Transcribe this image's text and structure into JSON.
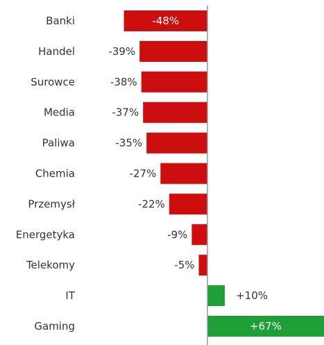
{
  "chart_data": {
    "type": "bar",
    "orientation": "horizontal",
    "categories": [
      "Banki",
      "Handel",
      "Surowce",
      "Media",
      "Paliwa",
      "Chemia",
      "Przemysł",
      "Energetyka",
      "Telekomy",
      "IT",
      "Gaming"
    ],
    "values": [
      -48,
      -39,
      -38,
      -37,
      -35,
      -27,
      -22,
      -9,
      -5,
      10,
      67
    ],
    "value_labels": [
      "-48%",
      "-39%",
      "-38%",
      "-37%",
      "-35%",
      "-27%",
      "-22%",
      "-9%",
      "-5%",
      "+10%",
      "+67%"
    ],
    "xlim": [
      -62,
      67
    ],
    "grid": false,
    "colors": {
      "negative": "#cc0e0e",
      "positive": "#1fa037",
      "axis": "#999999"
    }
  }
}
